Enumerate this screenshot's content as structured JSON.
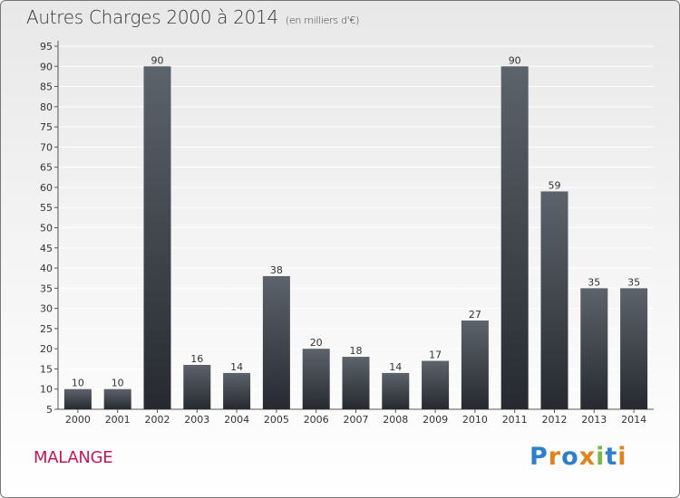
{
  "header": {
    "title": "Autres Charges 2000 à 2014",
    "subtitle": "(en milliers d'€)"
  },
  "footer": {
    "commune": "MALANGE",
    "logo": [
      "P",
      "r",
      "o",
      "x",
      "i",
      "t",
      "i"
    ],
    "logo_colors": [
      "#2e7fc7",
      "#e0841f",
      "#2e7fc7",
      "#e0841f",
      "#7ab648",
      "#2e7fc7",
      "#e0841f"
    ]
  },
  "chart_data": {
    "type": "bar",
    "title": "Autres Charges 2000 à 2014",
    "subtitle": "(en milliers d'€)",
    "categories": [
      "2000",
      "2001",
      "2002",
      "2003",
      "2004",
      "2005",
      "2006",
      "2007",
      "2008",
      "2009",
      "2010",
      "2011",
      "2012",
      "2013",
      "2014"
    ],
    "values": [
      10,
      10,
      90,
      16,
      14,
      38,
      20,
      18,
      14,
      17,
      27,
      90,
      59,
      35,
      35
    ],
    "ylim": [
      5,
      95
    ],
    "yticks": [
      5,
      10,
      15,
      20,
      25,
      30,
      35,
      40,
      45,
      50,
      55,
      60,
      65,
      70,
      75,
      80,
      85,
      90,
      95
    ],
    "grid": true,
    "bar_color": "#3a3f47"
  }
}
